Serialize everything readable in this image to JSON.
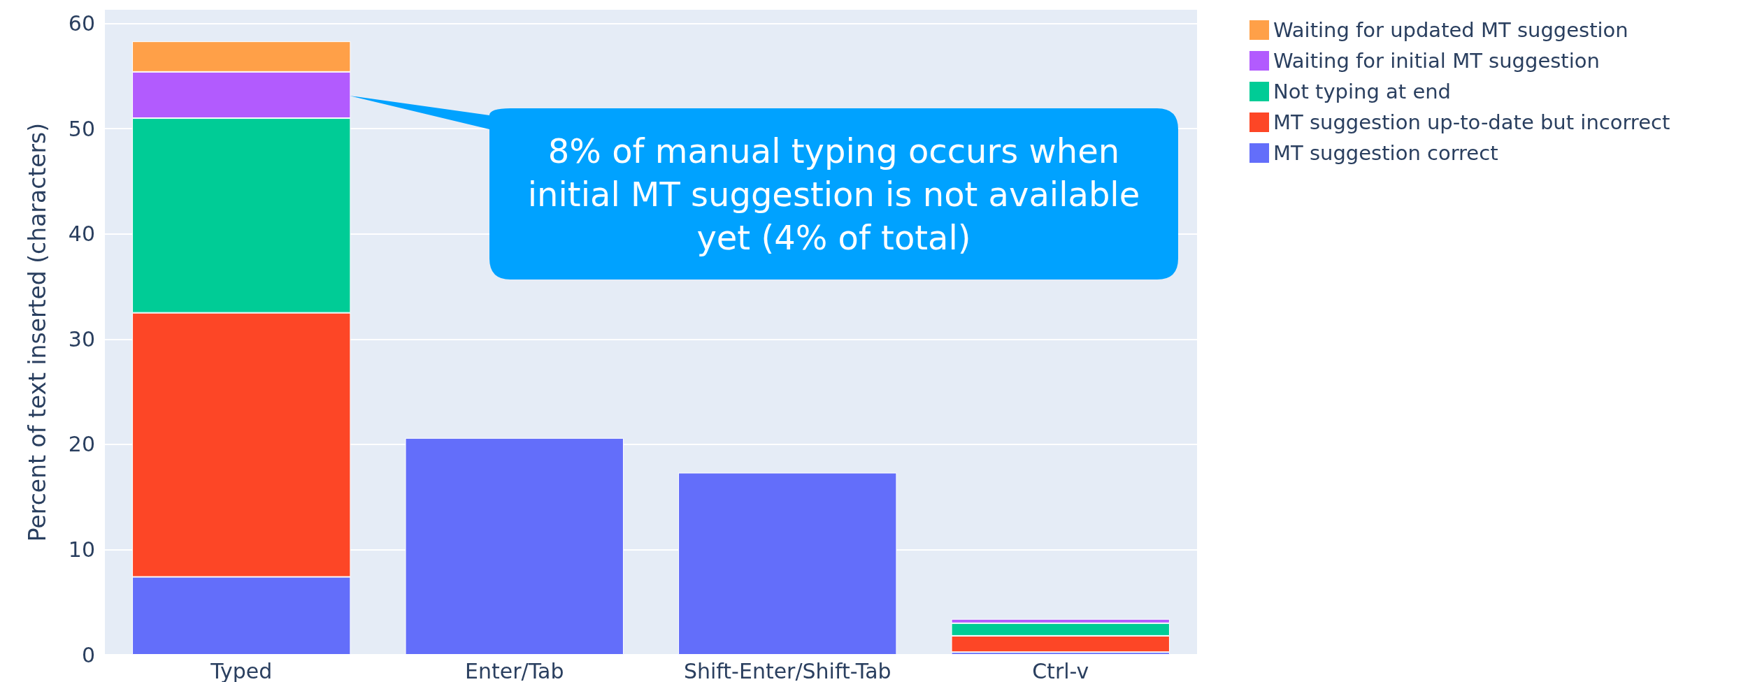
{
  "chart_data": {
    "type": "bar",
    "stacked": true,
    "ylabel": "Percent of text inserted (characters)",
    "categories": [
      "Typed",
      "Enter/Tab",
      "Shift-Enter/Shift-Tab",
      "Ctrl-v"
    ],
    "series": [
      {
        "name": "MT suggestion correct",
        "color": "#636efa",
        "values": [
          7.4,
          20.6,
          17.3,
          0.25
        ]
      },
      {
        "name": "MT suggestion up-to-date but incorrect",
        "color": "#fd4626",
        "values": [
          25.1,
          0,
          0,
          1.55
        ]
      },
      {
        "name": "Not typing at end",
        "color": "#00cc96",
        "values": [
          18.5,
          0,
          0,
          1.2
        ]
      },
      {
        "name": "Waiting for initial MT suggestion",
        "color": "#b25bfe",
        "values": [
          4.4,
          0,
          0,
          0.4
        ]
      },
      {
        "name": "Waiting for updated MT suggestion",
        "color": "#ffa048",
        "values": [
          2.9,
          0,
          0,
          0
        ]
      }
    ],
    "ylim": [
      0,
      61.3
    ],
    "yticks": [
      0,
      10,
      20,
      30,
      40,
      50,
      60
    ],
    "grid": "y",
    "legend": "top right",
    "annotations": [
      "8% of manual typing occurs when initial MT suggestion is not available yet (4% of total)"
    ]
  }
}
